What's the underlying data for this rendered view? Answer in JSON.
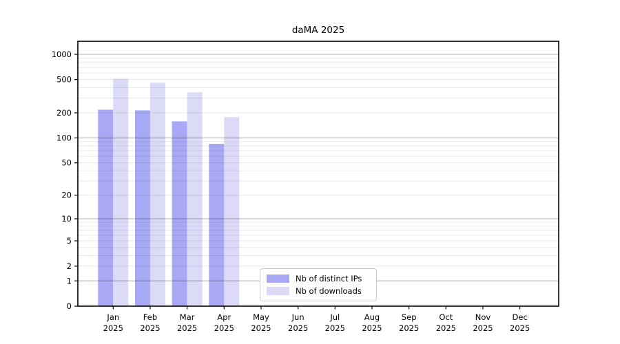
{
  "chart_data": {
    "type": "bar",
    "title": "daMA 2025",
    "scale": "log1p",
    "grid": true,
    "legend_position": "bottom-center",
    "categories": [
      "Jan",
      "Feb",
      "Mar",
      "Apr",
      "May",
      "Jun",
      "Jul",
      "Aug",
      "Sep",
      "Oct",
      "Nov",
      "Dec"
    ],
    "year_label": "2025",
    "yticks": [
      0,
      1,
      2,
      5,
      10,
      20,
      50,
      100,
      200,
      500,
      1000
    ],
    "ylim": [
      0,
      1430
    ],
    "series": [
      {
        "name": "Nb of distinct IPs",
        "color": "#a8a8f5",
        "values": [
          218,
          214,
          158,
          85,
          0,
          0,
          0,
          0,
          0,
          0,
          0,
          0
        ]
      },
      {
        "name": "Nb of downloads",
        "color": "#dbdbf8",
        "values": [
          510,
          460,
          352,
          178,
          0,
          0,
          0,
          0,
          0,
          0,
          0,
          0
        ]
      }
    ],
    "colors": {
      "major_grid": "rgba(0,0,0,0.28)",
      "minor_grid": "rgba(0,0,0,0.09)",
      "axis": "#000000",
      "legend_border": "#cccccc"
    }
  }
}
